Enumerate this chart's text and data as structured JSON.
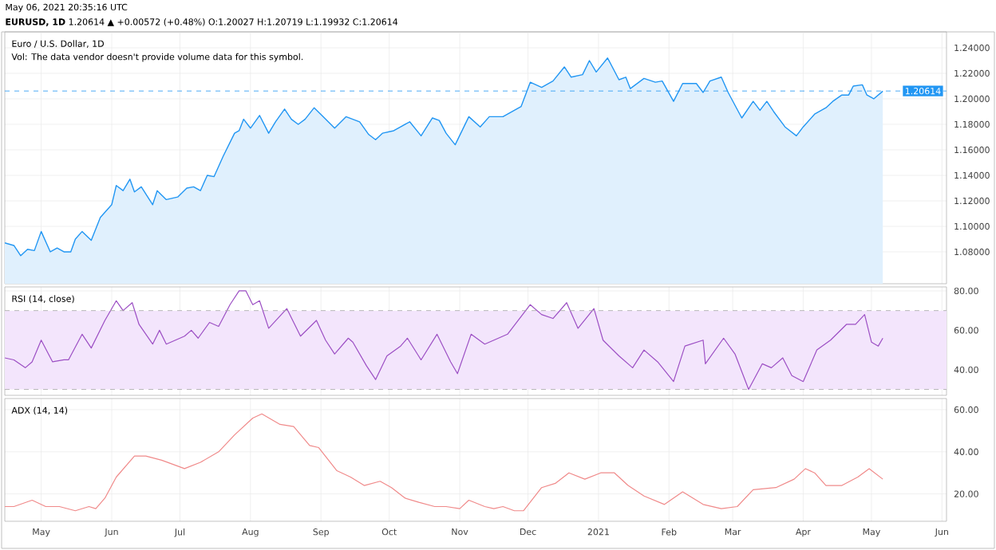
{
  "chart_data": [
    {
      "type": "area",
      "title": "Euro / U.S. Dollar, 1D",
      "color": "#2196f3",
      "annotations": [
        "May 06, 2021 20:35:16 UTC",
        "**EURUSD, 1D** 1.20614 ▲ +0.00572 (+0.48%) O:1.20027 H:1.20719 L:1.19932 C:1.20614",
        "Vol: The data vendor doesn't provide volume data for this symbol."
      ],
      "x": [
        "2020-04-15",
        "2020-04-19",
        "2020-04-22",
        "2020-04-25",
        "2020-04-28",
        "2020-05-01",
        "2020-05-05",
        "2020-05-08",
        "2020-05-11",
        "2020-05-14",
        "2020-05-16",
        "2020-05-19",
        "2020-05-23",
        "2020-05-27",
        "2020-06-01",
        "2020-06-03",
        "2020-06-06",
        "2020-06-09",
        "2020-06-11",
        "2020-06-14",
        "2020-06-19",
        "2020-06-21",
        "2020-06-25",
        "2020-06-30",
        "2020-07-04",
        "2020-07-07",
        "2020-07-10",
        "2020-07-13",
        "2020-07-16",
        "2020-07-20",
        "2020-07-25",
        "2020-07-27",
        "2020-07-29",
        "2020-08-01",
        "2020-08-05",
        "2020-08-09",
        "2020-08-12",
        "2020-08-16",
        "2020-08-19",
        "2020-08-22",
        "2020-08-25",
        "2020-08-29",
        "2020-09-02",
        "2020-09-07",
        "2020-09-12",
        "2020-09-18",
        "2020-09-22",
        "2020-09-25",
        "2020-09-28",
        "2020-10-03",
        "2020-10-06",
        "2020-10-10",
        "2020-10-15",
        "2020-10-20",
        "2020-10-23",
        "2020-10-26",
        "2020-10-30",
        "2020-11-05",
        "2020-11-10",
        "2020-11-14",
        "2020-11-20",
        "2020-11-25",
        "2020-11-28",
        "2020-12-02",
        "2020-12-07",
        "2020-12-12",
        "2020-12-17",
        "2020-12-20",
        "2020-12-25",
        "2020-12-28",
        "2020-12-31",
        "2021-01-05",
        "2021-01-10",
        "2021-01-13",
        "2021-01-15",
        "2021-01-21",
        "2021-01-26",
        "2021-01-29",
        "2021-02-03",
        "2021-02-07",
        "2021-02-13",
        "2021-02-16",
        "2021-02-19",
        "2021-02-24",
        "2021-02-27",
        "2021-03-05",
        "2021-03-10",
        "2021-03-13",
        "2021-03-16",
        "2021-03-19",
        "2021-03-24",
        "2021-03-29",
        "2021-04-01",
        "2021-04-06",
        "2021-04-11",
        "2021-04-14",
        "2021-04-18",
        "2021-04-21",
        "2021-04-23",
        "2021-04-27",
        "2021-04-29",
        "2021-05-02",
        "2021-05-06"
      ],
      "values": [
        1.087,
        1.085,
        1.077,
        1.082,
        1.081,
        1.096,
        1.08,
        1.083,
        1.08,
        1.08,
        1.09,
        1.096,
        1.089,
        1.107,
        1.117,
        1.132,
        1.128,
        1.137,
        1.127,
        1.131,
        1.117,
        1.128,
        1.121,
        1.123,
        1.13,
        1.131,
        1.128,
        1.14,
        1.139,
        1.155,
        1.173,
        1.175,
        1.184,
        1.177,
        1.187,
        1.173,
        1.182,
        1.192,
        1.184,
        1.18,
        1.184,
        1.193,
        1.186,
        1.177,
        1.186,
        1.182,
        1.172,
        1.168,
        1.173,
        1.175,
        1.178,
        1.182,
        1.171,
        1.185,
        1.183,
        1.173,
        1.164,
        1.186,
        1.178,
        1.186,
        1.186,
        1.191,
        1.194,
        1.213,
        1.209,
        1.214,
        1.225,
        1.217,
        1.219,
        1.23,
        1.221,
        1.232,
        1.215,
        1.217,
        1.208,
        1.216,
        1.213,
        1.214,
        1.198,
        1.212,
        1.212,
        1.205,
        1.214,
        1.217,
        1.205,
        1.185,
        1.198,
        1.191,
        1.198,
        1.19,
        1.178,
        1.171,
        1.178,
        1.188,
        1.193,
        1.198,
        1.203,
        1.203,
        1.21,
        1.211,
        1.203,
        1.2,
        1.206
      ],
      "xlim": [
        "2020-04-15",
        "2021-06-03"
      ],
      "ylim": [
        1.055,
        1.2525
      ],
      "xticks": [
        {
          "value": "2020-05-01",
          "label": null
        },
        {
          "value": "2020-06-01",
          "label": null
        },
        {
          "value": "2020-07-01",
          "label": null
        },
        {
          "value": "2020-08-01",
          "label": null
        },
        {
          "value": "2020-09-01",
          "label": null
        },
        {
          "value": "2020-10-01",
          "label": null
        },
        {
          "value": "2020-11-01",
          "label": null
        },
        {
          "value": "2020-12-01",
          "label": null
        },
        {
          "value": "2021-01-01",
          "label": null
        },
        {
          "value": "2021-02-01",
          "label": null
        },
        {
          "value": "2021-03-01",
          "label": null
        },
        {
          "value": "2021-04-01",
          "label": null
        },
        {
          "value": "2021-05-01",
          "label": null
        },
        {
          "value": "2021-06-01",
          "label": null
        }
      ],
      "yticks": [
        {
          "value": 1.08,
          "label": "1.08000"
        },
        {
          "value": 1.1,
          "label": "1.10000"
        },
        {
          "value": 1.12,
          "label": "1.12000"
        },
        {
          "value": 1.14,
          "label": "1.14000"
        },
        {
          "value": 1.16,
          "label": "1.16000"
        },
        {
          "value": 1.18,
          "label": "1.18000"
        },
        {
          "value": 1.2,
          "label": "1.20000"
        },
        {
          "value": 1.22,
          "label": "1.22000"
        },
        {
          "value": 1.24,
          "label": "1.24000"
        }
      ],
      "ref_lines": [
        {
          "axis": "y",
          "value": 1.20614,
          "label": "1.20614",
          "color": "#2196f3",
          "line_style": "dashed"
        }
      ],
      "grid": true,
      "tick_labels": "y"
    },
    {
      "type": "line",
      "title": "RSI (14, close)",
      "color": "#9c4fc4",
      "x": [
        "2020-04-15",
        "2020-04-19",
        "2020-04-24",
        "2020-04-27",
        "2020-05-01",
        "2020-05-06",
        "2020-05-11",
        "2020-05-13",
        "2020-05-19",
        "2020-05-23",
        "2020-05-29",
        "2020-06-03",
        "2020-06-06",
        "2020-06-10",
        "2020-06-13",
        "2020-06-19",
        "2020-06-22",
        "2020-06-25",
        "2020-07-03",
        "2020-07-06",
        "2020-07-09",
        "2020-07-14",
        "2020-07-18",
        "2020-07-23",
        "2020-07-27",
        "2020-07-30",
        "2020-08-02",
        "2020-08-05",
        "2020-08-09",
        "2020-08-17",
        "2020-08-23",
        "2020-08-30",
        "2020-09-03",
        "2020-09-07",
        "2020-09-13",
        "2020-09-15",
        "2020-09-21",
        "2020-09-25",
        "2020-09-30",
        "2020-10-06",
        "2020-10-09",
        "2020-10-15",
        "2020-10-22",
        "2020-10-28",
        "2020-10-31",
        "2020-11-06",
        "2020-11-12",
        "2020-11-22",
        "2020-11-26",
        "2020-12-02",
        "2020-12-07",
        "2020-12-12",
        "2020-12-18",
        "2020-12-23",
        "2020-12-30",
        "2021-01-03",
        "2021-01-10",
        "2021-01-16",
        "2021-01-21",
        "2021-01-27",
        "2021-02-03",
        "2021-02-08",
        "2021-02-16",
        "2021-02-17",
        "2021-02-25",
        "2021-03-02",
        "2021-03-08",
        "2021-03-14",
        "2021-03-18",
        "2021-03-23",
        "2021-03-27",
        "2021-04-01",
        "2021-04-07",
        "2021-04-13",
        "2021-04-20",
        "2021-04-24",
        "2021-04-28",
        "2021-05-01",
        "2021-05-04",
        "2021-05-06"
      ],
      "values": [
        46,
        45,
        41,
        44,
        55,
        44,
        45,
        45,
        58,
        51,
        65,
        75,
        70,
        74,
        63,
        53,
        60,
        53,
        57,
        60,
        56,
        64,
        62,
        73,
        80,
        80,
        73,
        75,
        61,
        71,
        57,
        65,
        55,
        48,
        56,
        54,
        42,
        35,
        47,
        52,
        56,
        45,
        58,
        44,
        38,
        58,
        53,
        58,
        64,
        73,
        68,
        66,
        74,
        61,
        71,
        55,
        47,
        41,
        50,
        44,
        34,
        52,
        55,
        43,
        56,
        48,
        30,
        43,
        41,
        46,
        37,
        34,
        50,
        55,
        63,
        63,
        68,
        54,
        52,
        56
      ],
      "xlim": [
        "2020-04-15",
        "2021-06-03"
      ],
      "ylim": [
        27,
        82
      ],
      "xticks": [
        {
          "value": "2020-05-01",
          "label": null
        },
        {
          "value": "2020-06-01",
          "label": null
        },
        {
          "value": "2020-07-01",
          "label": null
        },
        {
          "value": "2020-08-01",
          "label": null
        },
        {
          "value": "2020-09-01",
          "label": null
        },
        {
          "value": "2020-10-01",
          "label": null
        },
        {
          "value": "2020-11-01",
          "label": null
        },
        {
          "value": "2020-12-01",
          "label": null
        },
        {
          "value": "2021-01-01",
          "label": null
        },
        {
          "value": "2021-02-01",
          "label": null
        },
        {
          "value": "2021-03-01",
          "label": null
        },
        {
          "value": "2021-04-01",
          "label": null
        },
        {
          "value": "2021-05-01",
          "label": null
        },
        {
          "value": "2021-06-01",
          "label": null
        }
      ],
      "yticks": [
        {
          "value": 40,
          "label": "40.00"
        },
        {
          "value": 60,
          "label": "60.00"
        },
        {
          "value": 80,
          "label": "80.00"
        }
      ],
      "bands": [
        {
          "axis": "y",
          "from": 30,
          "to": 70,
          "color": "#f3e5fc"
        }
      ],
      "ref_lines": [
        {
          "axis": "y",
          "value": 30,
          "color": "#a6a6a6",
          "line_style": "dashed"
        },
        {
          "axis": "y",
          "value": 70,
          "color": "#a6a6a6",
          "line_style": "dashed"
        }
      ],
      "grid": true,
      "tick_labels": "y"
    },
    {
      "type": "line",
      "title": "ADX (14, 14)",
      "color": "#f08a8a",
      "x": [
        "2020-04-15",
        "2020-04-19",
        "2020-04-27",
        "2020-05-03",
        "2020-05-09",
        "2020-05-16",
        "2020-05-22",
        "2020-05-25",
        "2020-05-29",
        "2020-06-03",
        "2020-06-11",
        "2020-06-16",
        "2020-06-23",
        "2020-07-03",
        "2020-07-10",
        "2020-07-18",
        "2020-07-25",
        "2020-08-02",
        "2020-08-06",
        "2020-08-14",
        "2020-08-20",
        "2020-08-27",
        "2020-08-31",
        "2020-09-08",
        "2020-09-14",
        "2020-09-20",
        "2020-09-27",
        "2020-10-02",
        "2020-10-08",
        "2020-10-14",
        "2020-10-21",
        "2020-10-26",
        "2020-11-01",
        "2020-11-05",
        "2020-11-12",
        "2020-11-16",
        "2020-11-20",
        "2020-11-25",
        "2020-11-29",
        "2020-12-07",
        "2020-12-13",
        "2020-12-19",
        "2020-12-26",
        "2021-01-02",
        "2021-01-08",
        "2021-01-14",
        "2021-01-21",
        "2021-01-30",
        "2021-02-07",
        "2021-02-16",
        "2021-02-24",
        "2021-03-03",
        "2021-03-10",
        "2021-03-20",
        "2021-03-28",
        "2021-04-02",
        "2021-04-06",
        "2021-04-11",
        "2021-04-18",
        "2021-04-25",
        "2021-04-30",
        "2021-05-06"
      ],
      "values": [
        14,
        14,
        17,
        14,
        14,
        12,
        14,
        13,
        18,
        28,
        38,
        38,
        36,
        32,
        35,
        40,
        48,
        56,
        58,
        53,
        52,
        43,
        42,
        31,
        28,
        24,
        26,
        23,
        18,
        16,
        14,
        14,
        13,
        17,
        14,
        13,
        14,
        12,
        12,
        23,
        25,
        30,
        27,
        30,
        30,
        24,
        19,
        15,
        21,
        15,
        13,
        14,
        22,
        23,
        27,
        32,
        30,
        24,
        24,
        28,
        32,
        27
      ],
      "xlim": [
        "2020-04-15",
        "2021-06-03"
      ],
      "ylim": [
        7,
        65.3
      ],
      "xticks": [
        {
          "value": "2020-05-01",
          "label": "May"
        },
        {
          "value": "2020-06-01",
          "label": "Jun"
        },
        {
          "value": "2020-07-01",
          "label": "Jul"
        },
        {
          "value": "2020-08-01",
          "label": "Aug"
        },
        {
          "value": "2020-09-01",
          "label": "Sep"
        },
        {
          "value": "2020-10-01",
          "label": "Oct"
        },
        {
          "value": "2020-11-01",
          "label": "Nov"
        },
        {
          "value": "2020-12-01",
          "label": "Dec"
        },
        {
          "value": "2021-01-01",
          "label": "2021"
        },
        {
          "value": "2021-02-01",
          "label": "Feb"
        },
        {
          "value": "2021-03-01",
          "label": "Mar"
        },
        {
          "value": "2021-04-01",
          "label": "Apr"
        },
        {
          "value": "2021-05-01",
          "label": "May"
        },
        {
          "value": "2021-06-01",
          "label": "Jun"
        }
      ],
      "yticks": [
        {
          "value": 20,
          "label": "20.00"
        },
        {
          "value": 40,
          "label": "40.00"
        },
        {
          "value": 60,
          "label": "60.00"
        }
      ],
      "grid": true
    }
  ]
}
